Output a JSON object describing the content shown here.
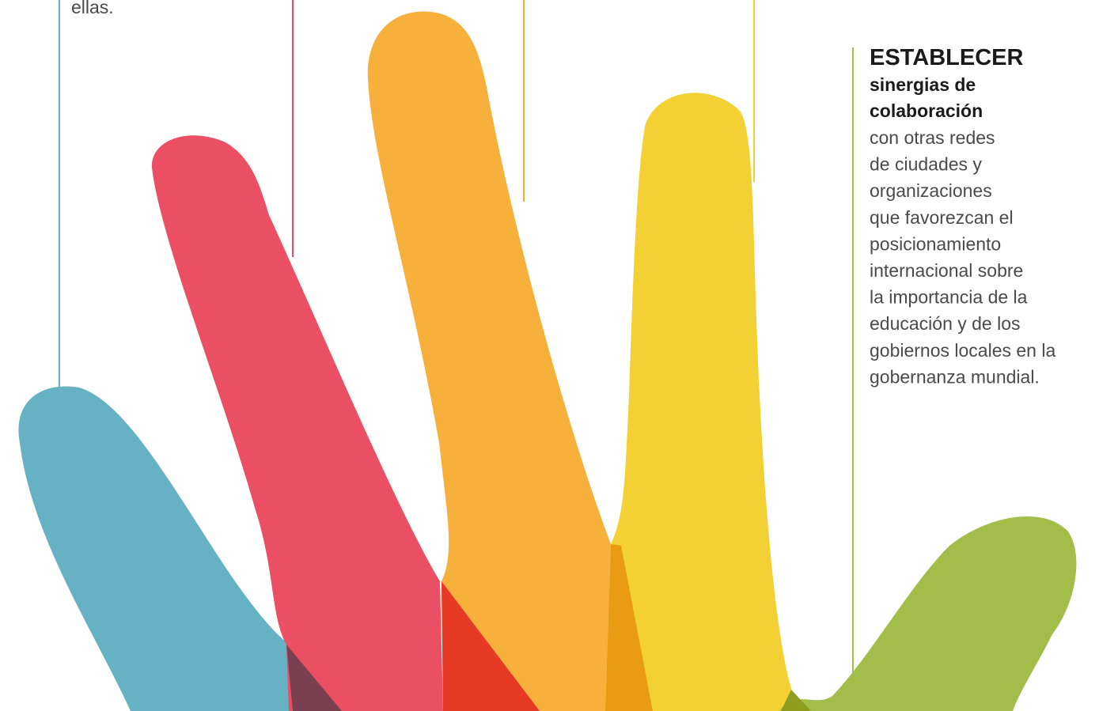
{
  "top_fragment": "ellas.",
  "panel": {
    "heading": "ESTABLECER",
    "subheading": [
      "sinergias de",
      "colaboración"
    ],
    "body": [
      "con otras redes",
      "de ciudades y",
      "organizaciones",
      "que favorezcan el",
      "posicionamiento",
      "internacional sobre",
      "la importancia de la",
      "educación y de los",
      "gobiernos locales en la",
      "gobernanza mundial."
    ]
  }
}
